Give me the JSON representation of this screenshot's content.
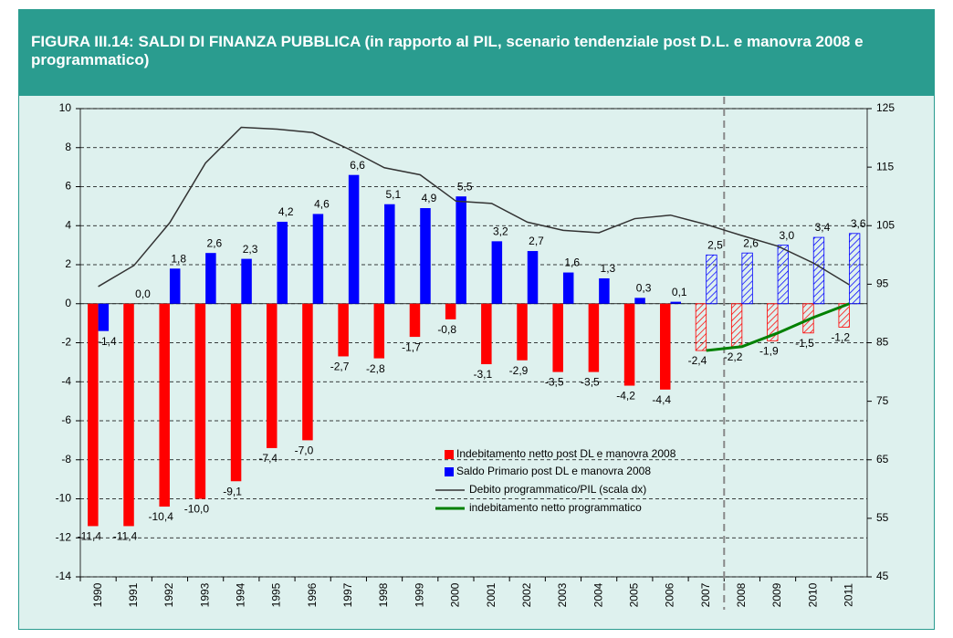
{
  "chart_data": {
    "type": "bar",
    "title": "FIGURA III.14: SALDI DI FINANZA PUBBLICA (in rapporto al PIL,  scenario tendenziale post D.L. e manovra 2008 e programmatico)",
    "categories": [
      "1990",
      "1991",
      "1992",
      "1993",
      "1994",
      "1995",
      "1996",
      "1997",
      "1998",
      "1999",
      "2000",
      "2001",
      "2002",
      "2003",
      "2004",
      "2005",
      "2006",
      "2007",
      "2008",
      "2009",
      "2010",
      "2011"
    ],
    "ylim": [
      -14,
      10
    ],
    "yticks": [
      10,
      8,
      6,
      4,
      2,
      0,
      -2,
      -4,
      -6,
      -8,
      -10,
      -12,
      -14
    ],
    "y2lim": [
      45,
      125
    ],
    "y2ticks": [
      125,
      115,
      105,
      95,
      85,
      75,
      65,
      55,
      45
    ],
    "grid": true,
    "hatch_start_index": 17,
    "divider_after_index": 17,
    "series": [
      {
        "name": "Indebitamento netto post DL e manovra 2008",
        "type": "bar",
        "color": "#ff0000",
        "values": [
          -11.4,
          -11.4,
          -10.4,
          -10.0,
          -9.1,
          -7.4,
          -7.0,
          -2.7,
          -2.8,
          -1.7,
          -0.8,
          -3.1,
          -2.9,
          -3.5,
          -3.5,
          -4.2,
          -4.4,
          -2.4,
          -2.2,
          -1.9,
          -1.5,
          -1.2
        ],
        "value_labels": [
          "-11,4",
          "-11,4",
          "-10,4",
          "-10,0",
          "-9,1",
          "-7,4",
          "-7,0",
          "-2,7",
          "-2,8",
          "-1,7",
          "-0,8",
          "-3,1",
          "-2,9",
          "-3,5",
          "-3,5",
          "-4,2",
          "-4,4",
          "-2,4",
          "-2,2",
          "-1,9",
          "-1,5",
          "-1,2"
        ]
      },
      {
        "name": "Saldo Primario post DL e manovra 2008",
        "type": "bar",
        "color": "#0000ff",
        "values": [
          -1.4,
          0.0,
          1.8,
          2.6,
          2.3,
          4.2,
          4.6,
          6.6,
          5.1,
          4.9,
          5.5,
          3.2,
          2.7,
          1.6,
          1.3,
          0.3,
          0.1,
          2.5,
          2.6,
          3.0,
          3.4,
          3.6
        ],
        "value_labels": [
          "-1,4",
          "0,0",
          "1,8",
          "2,6",
          "2,3",
          "4,2",
          "4,6",
          "6,6",
          "5,1",
          "4,9",
          "5,5",
          "3,2",
          "2,7",
          "1,6",
          "1,3",
          "0,3",
          "0,1",
          "2,5",
          "2,6",
          "3,0",
          "3,4",
          "3,6"
        ]
      },
      {
        "name": "Debito programmatico/PIL (scala dx)",
        "type": "line",
        "axis": "y2",
        "color": "#333333",
        "values": [
          94.6,
          98.2,
          105.5,
          115.7,
          121.8,
          121.5,
          120.9,
          118.1,
          114.9,
          113.7,
          109.2,
          108.8,
          105.6,
          104.2,
          103.8,
          106.2,
          106.8,
          105.2,
          103.3,
          101.5,
          98.6,
          94.9
        ]
      },
      {
        "name": "indebitamento netto programmatico",
        "type": "line",
        "color": "#008000",
        "values": [
          null,
          null,
          null,
          null,
          null,
          null,
          null,
          null,
          null,
          null,
          null,
          null,
          null,
          null,
          null,
          null,
          null,
          -2.4,
          -2.2,
          -1.5,
          -0.7,
          0.0
        ]
      }
    ]
  }
}
